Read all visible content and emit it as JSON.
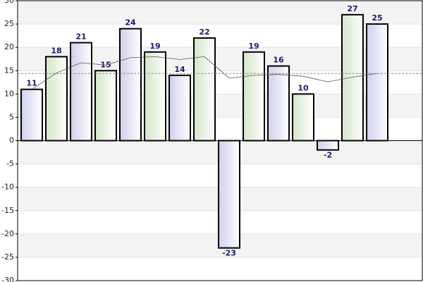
{
  "chart_data": {
    "type": "bar",
    "categories": [
      null,
      null,
      null,
      null,
      null,
      null,
      null,
      null,
      null,
      null,
      null,
      null,
      null,
      null,
      null
    ],
    "series": [
      {
        "values": [
          11,
          18,
          21,
          15,
          24,
          19,
          14,
          22,
          -23,
          19,
          16,
          10,
          -2,
          27,
          25
        ],
        "colors": [
          "#cfcfee",
          "#d3e6c8",
          "#cfcfee",
          "#d3e6c8",
          "#cfcfee",
          "#d3e6c8",
          "#cfcfee",
          "#d3e6c8",
          "#cfcfee",
          "#d3e6c8",
          "#cfcfee",
          "#d3e6c8",
          "#cfcfee",
          "#d3e6c8",
          "#cfcfee"
        ]
      },
      {
        "type": "line",
        "color": "#555555",
        "values": [
          11,
          14.5,
          16.7,
          16.2,
          17.8,
          18,
          17.4,
          18,
          13.4,
          14,
          14.2,
          13.8,
          12.6,
          13.6,
          14.4
        ]
      }
    ],
    "reference_line": 14.4,
    "ylim": [
      -30,
      30
    ],
    "yticks": [
      -30,
      -25,
      -20,
      -15,
      -10,
      -5,
      0,
      5,
      10,
      15,
      20,
      25,
      30
    ],
    "grid": true
  }
}
